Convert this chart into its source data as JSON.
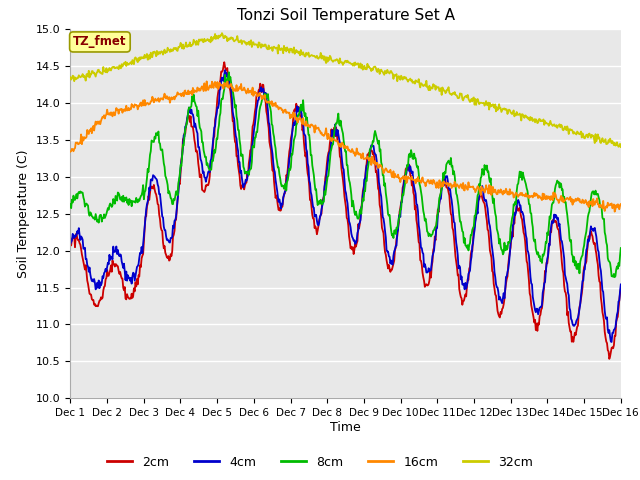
{
  "title": "Tonzi Soil Temperature Set A",
  "xlabel": "Time",
  "ylabel": "Soil Temperature (C)",
  "ylim": [
    10.0,
    15.0
  ],
  "yticks": [
    10.0,
    10.5,
    11.0,
    11.5,
    12.0,
    12.5,
    13.0,
    13.5,
    14.0,
    14.5,
    15.0
  ],
  "xtick_labels": [
    "Dec 1",
    "Dec 2",
    "Dec 3",
    "Dec 4",
    "Dec 5",
    "Dec 6",
    "Dec 7",
    "Dec 8",
    "Dec 9",
    "Dec 10",
    "Dec 11",
    "Dec 12",
    "Dec 13",
    "Dec 14",
    "Dec 15",
    "Dec 16"
  ],
  "colors": {
    "2cm": "#cc0000",
    "4cm": "#0000cc",
    "8cm": "#00bb00",
    "16cm": "#ff8800",
    "32cm": "#cccc00"
  },
  "annotation_text": "TZ_fmet",
  "annotation_bg": "#ffff99",
  "annotation_border": "#999900",
  "annotation_text_color": "#880000",
  "plot_bg": "#e8e8e8",
  "grid_color": "#ffffff",
  "linewidth": 1.3
}
